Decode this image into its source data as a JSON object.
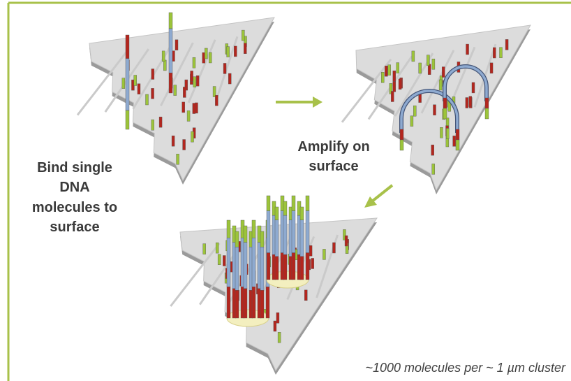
{
  "steps": [
    {
      "lines": [
        "Bind single",
        "DNA",
        "molecules to",
        "surface"
      ]
    },
    {
      "lines": [
        "Amplify on",
        "surface"
      ]
    }
  ],
  "caption": "~1000 molecules per ~ 1 µm cluster"
}
